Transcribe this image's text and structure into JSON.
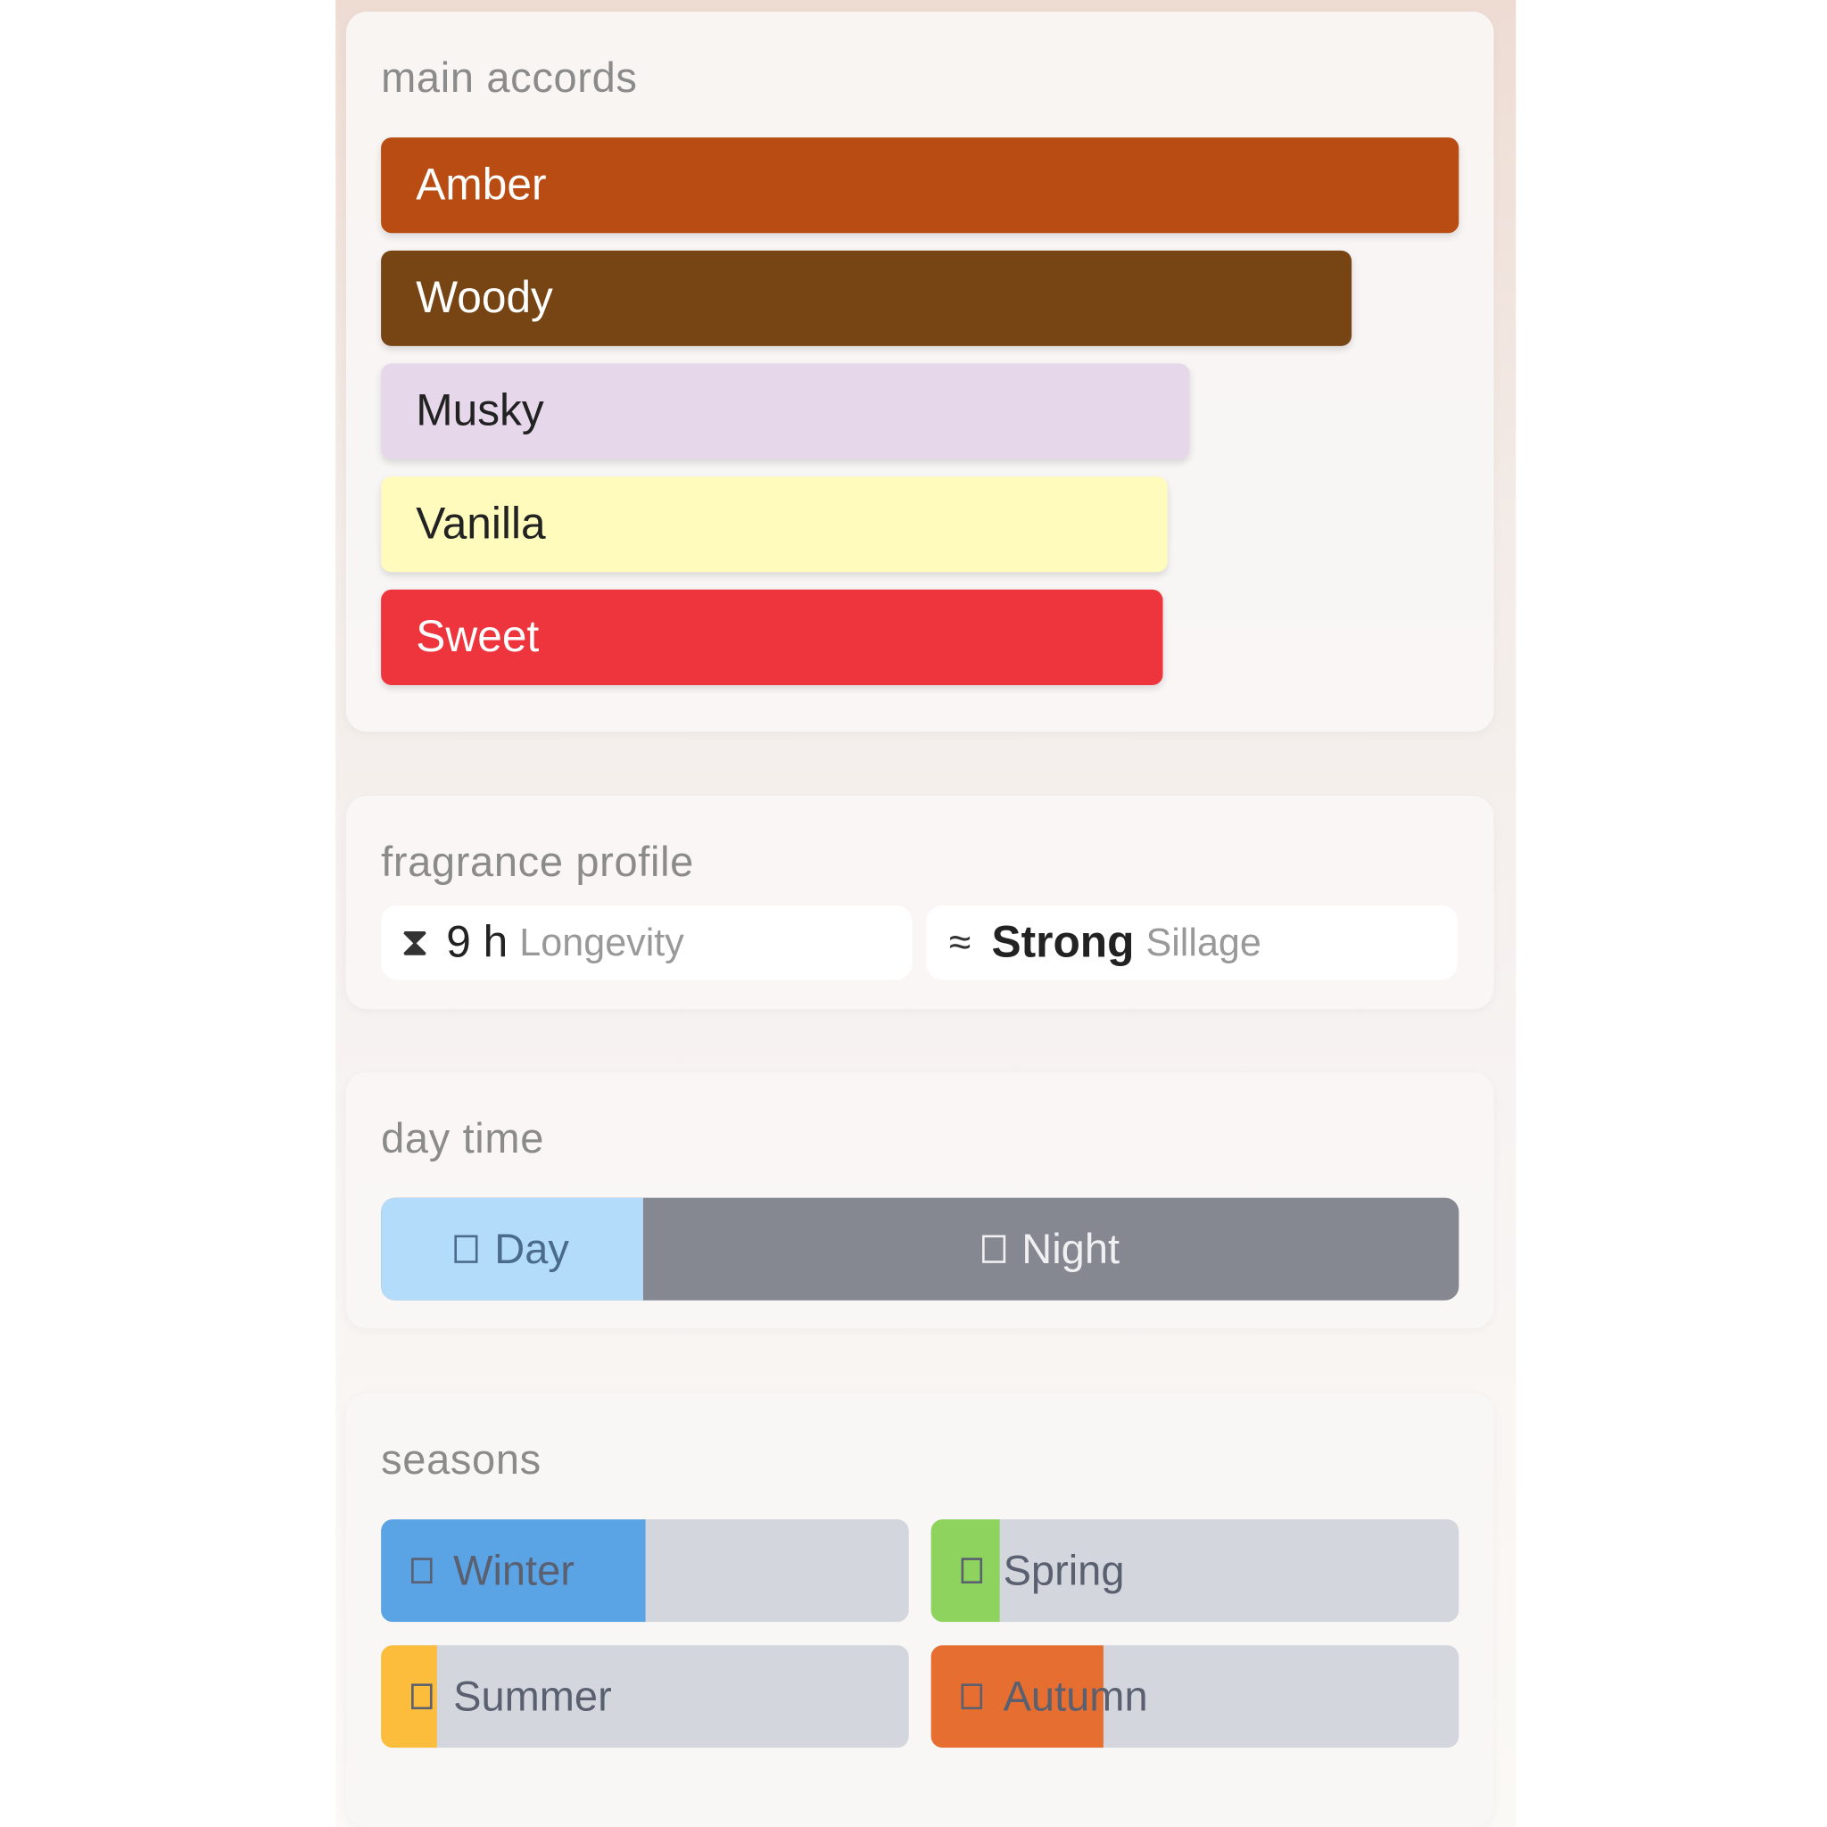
{
  "main_accords": {
    "title": "main accords",
    "items": [
      {
        "label": "Amber",
        "strength_pct": 100,
        "color": "#b94c12",
        "text_color": "#ffffff"
      },
      {
        "label": "Woody",
        "strength_pct": 90,
        "color": "#774414",
        "text_color": "#ffffff"
      },
      {
        "label": "Musky",
        "strength_pct": 75,
        "color": "#e6d8ea",
        "text_color": "#222222"
      },
      {
        "label": "Vanilla",
        "strength_pct": 73,
        "color": "#fffbbd",
        "text_color": "#222222"
      },
      {
        "label": "Sweet",
        "strength_pct": 72.5,
        "color": "#ee343c",
        "text_color": "#ffffff"
      }
    ]
  },
  "fragrance_profile": {
    "title": "fragrance profile",
    "longevity": {
      "icon": "hourglass-icon",
      "value": "9 h",
      "label": "Longevity"
    },
    "sillage": {
      "icon": "waves-icon",
      "value": "Strong",
      "label": "Sillage"
    }
  },
  "day_time": {
    "title": "day time",
    "day": {
      "label": "Day",
      "pct": 24.3,
      "color": "#b3dcfb"
    },
    "night": {
      "label": "Night",
      "pct": 75.7,
      "color": "#858891"
    }
  },
  "seasons": {
    "title": "seasons",
    "items": [
      {
        "label": "Winter",
        "pct": 50,
        "color": "#5aa3e4"
      },
      {
        "label": "Spring",
        "pct": 13,
        "color": "#8ed35e"
      },
      {
        "label": "Summer",
        "pct": 10.6,
        "color": "#fcbd3c"
      },
      {
        "label": "Autumn",
        "pct": 32.7,
        "color": "#e56e30"
      }
    ]
  }
}
